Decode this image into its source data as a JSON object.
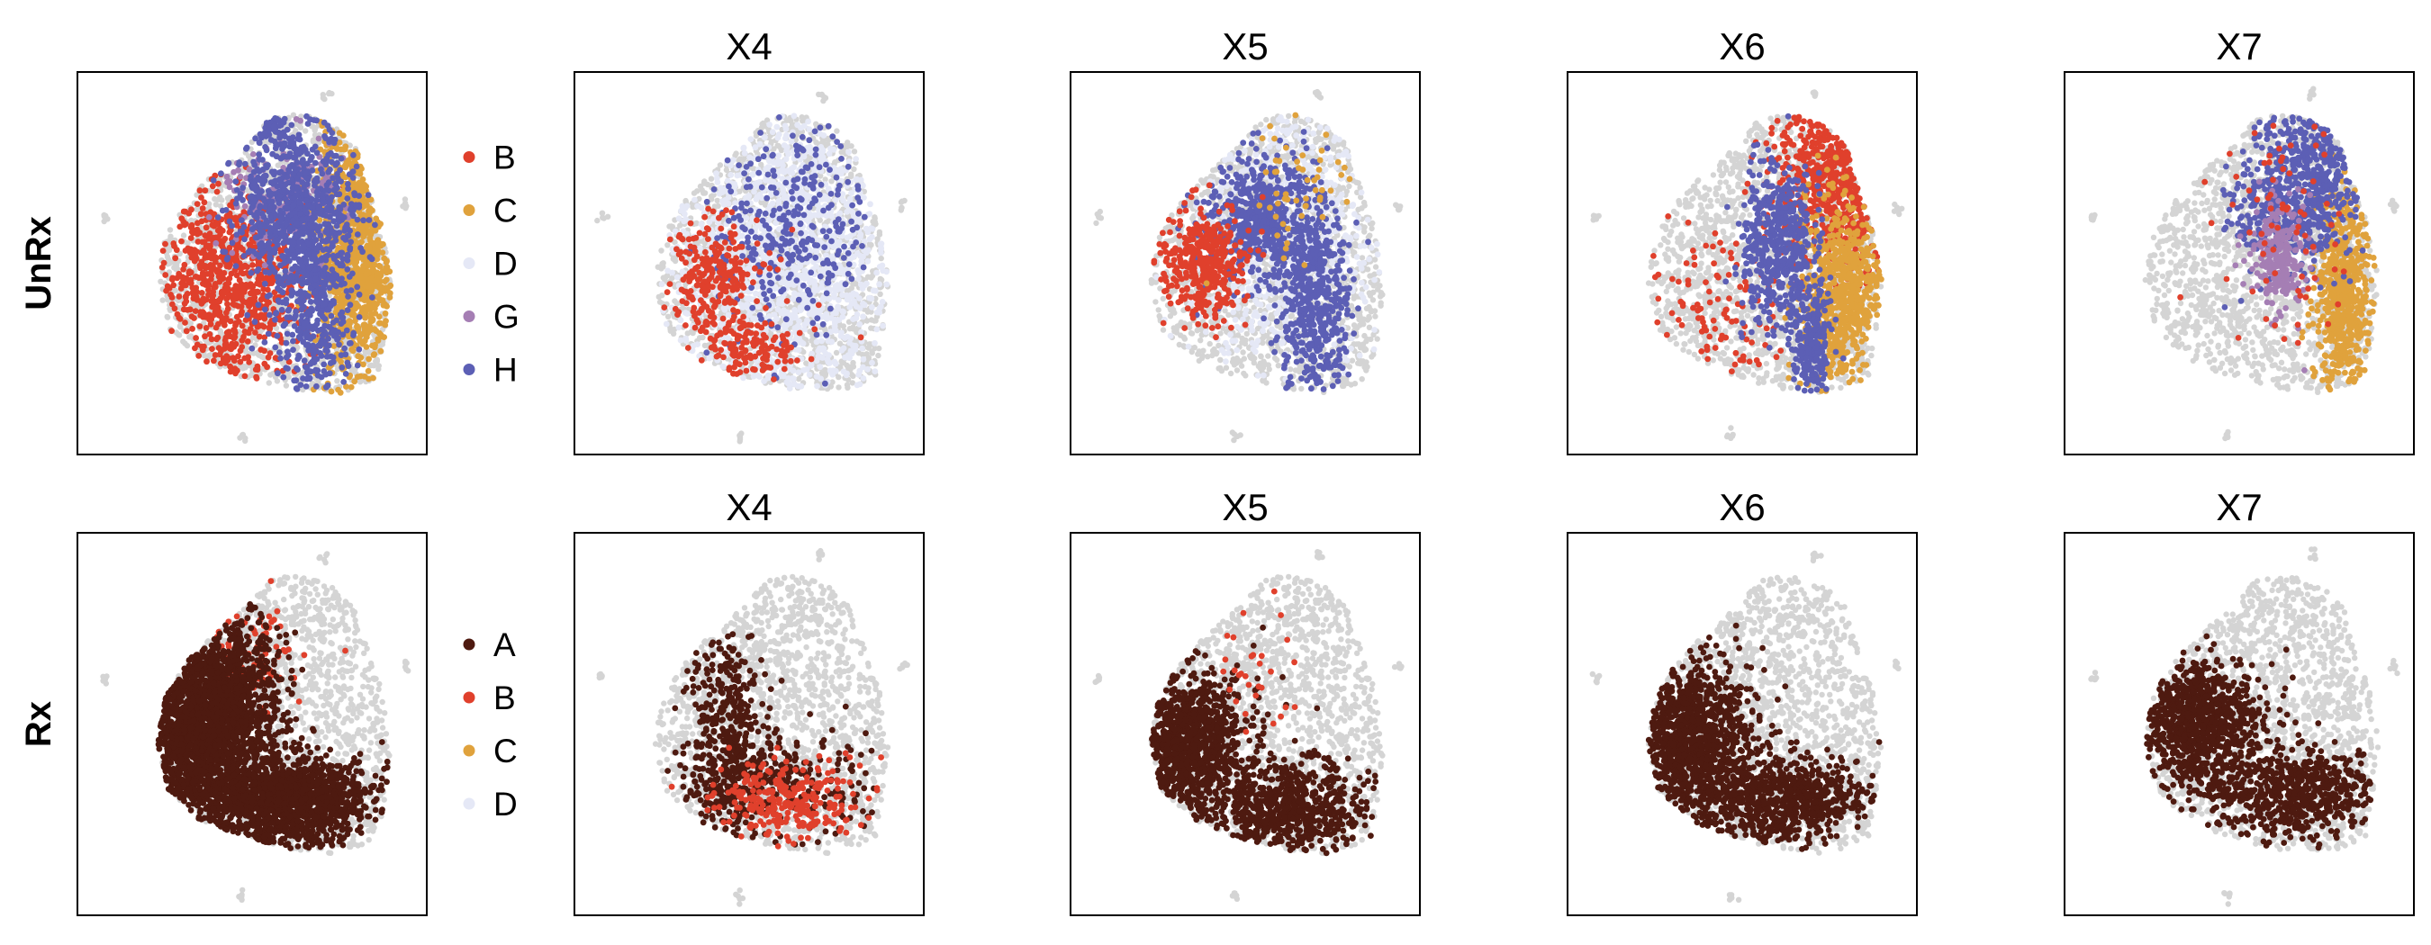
{
  "colors": {
    "background_cells": "#d4d4d4",
    "A": "#4e1a10",
    "B": "#e0402c",
    "C": "#e0a23c",
    "D": "#e5e8f6",
    "G": "#a57eb4",
    "H": "#5c5fb5",
    "frame": "#000000"
  },
  "chart_data": {
    "type": "scatter",
    "rows": [
      {
        "label": "UnRx",
        "legend": [
          {
            "name": "B",
            "color": "#e0402c"
          },
          {
            "name": "C",
            "color": "#e0a23c"
          },
          {
            "name": "D",
            "color": "#e5e8f6"
          },
          {
            "name": "G",
            "color": "#a57eb4"
          },
          {
            "name": "H",
            "color": "#5c5fb5"
          }
        ],
        "panels": [
          {
            "title": "",
            "series": [
              {
                "name": "B",
                "color": "#e0402c",
                "regions": [
                  {
                    "c": [
                      0.45,
                      0.58
                    ],
                    "s": [
                      0.11,
                      0.13
                    ],
                    "n": 700
                  },
                  {
                    "c": [
                      0.37,
                      0.46
                    ],
                    "s": [
                      0.06,
                      0.08
                    ],
                    "n": 120
                  }
                ]
              },
              {
                "name": "C",
                "color": "#e0a23c",
                "regions": [
                  {
                    "c": [
                      0.78,
                      0.45
                    ],
                    "s": [
                      0.05,
                      0.18
                    ],
                    "n": 900
                  },
                  {
                    "c": [
                      0.85,
                      0.55
                    ],
                    "s": [
                      0.04,
                      0.09
                    ],
                    "n": 200
                  }
                ]
              },
              {
                "name": "G",
                "color": "#a57eb4",
                "regions": [
                  {
                    "c": [
                      0.6,
                      0.32
                    ],
                    "s": [
                      0.09,
                      0.08
                    ],
                    "n": 200
                  }
                ]
              },
              {
                "name": "H",
                "color": "#5c5fb5",
                "regions": [
                  {
                    "c": [
                      0.62,
                      0.35
                    ],
                    "s": [
                      0.09,
                      0.1
                    ],
                    "n": 700
                  },
                  {
                    "c": [
                      0.68,
                      0.6
                    ],
                    "s": [
                      0.06,
                      0.14
                    ],
                    "n": 500
                  },
                  {
                    "c": [
                      0.56,
                      0.14
                    ],
                    "s": [
                      0.02,
                      0.03
                    ],
                    "n": 60
                  }
                ]
              }
            ]
          },
          {
            "title": "X4",
            "series": [
              {
                "name": "D",
                "color": "#e5e8f6",
                "regions": [
                  {
                    "c": [
                      0.6,
                      0.5
                    ],
                    "s": [
                      0.16,
                      0.22
                    ],
                    "n": 1800
                  }
                ]
              },
              {
                "name": "H",
                "color": "#5c5fb5",
                "regions": [
                  {
                    "c": [
                      0.62,
                      0.38
                    ],
                    "s": [
                      0.12,
                      0.16
                    ],
                    "n": 350
                  }
                ]
              },
              {
                "name": "B",
                "color": "#e0402c",
                "regions": [
                  {
                    "c": [
                      0.4,
                      0.55
                    ],
                    "s": [
                      0.07,
                      0.08
                    ],
                    "n": 280
                  },
                  {
                    "c": [
                      0.52,
                      0.73
                    ],
                    "s": [
                      0.07,
                      0.04
                    ],
                    "n": 120
                  }
                ]
              }
            ]
          },
          {
            "title": "X5",
            "series": [
              {
                "name": "D",
                "color": "#e5e8f6",
                "regions": [
                  {
                    "c": [
                      0.6,
                      0.42
                    ],
                    "s": [
                      0.14,
                      0.18
                    ],
                    "n": 900
                  }
                ]
              },
              {
                "name": "H",
                "color": "#5c5fb5",
                "regions": [
                  {
                    "c": [
                      0.55,
                      0.38
                    ],
                    "s": [
                      0.08,
                      0.08
                    ],
                    "n": 600
                  },
                  {
                    "c": [
                      0.7,
                      0.62
                    ],
                    "s": [
                      0.05,
                      0.13
                    ],
                    "n": 500
                  }
                ]
              },
              {
                "name": "B",
                "color": "#e0402c",
                "regions": [
                  {
                    "c": [
                      0.38,
                      0.5
                    ],
                    "s": [
                      0.06,
                      0.08
                    ],
                    "n": 380
                  }
                ]
              },
              {
                "name": "C",
                "color": "#e0a23c",
                "regions": [
                  {
                    "c": [
                      0.66,
                      0.3
                    ],
                    "s": [
                      0.08,
                      0.12
                    ],
                    "n": 60
                  }
                ]
              }
            ]
          },
          {
            "title": "X6",
            "series": [
              {
                "name": "B",
                "color": "#e0402c",
                "regions": [
                  {
                    "c": [
                      0.78,
                      0.27
                    ],
                    "s": [
                      0.09,
                      0.12
                    ],
                    "n": 900
                  },
                  {
                    "c": [
                      0.42,
                      0.6
                    ],
                    "s": [
                      0.09,
                      0.12
                    ],
                    "n": 120
                  }
                ]
              },
              {
                "name": "C",
                "color": "#e0a23c",
                "regions": [
                  {
                    "c": [
                      0.78,
                      0.58
                    ],
                    "s": [
                      0.06,
                      0.12
                    ],
                    "n": 700
                  }
                ]
              },
              {
                "name": "H",
                "color": "#5c5fb5",
                "regions": [
                  {
                    "c": [
                      0.6,
                      0.45
                    ],
                    "s": [
                      0.05,
                      0.11
                    ],
                    "n": 500
                  },
                  {
                    "c": [
                      0.7,
                      0.7
                    ],
                    "s": [
                      0.03,
                      0.08
                    ],
                    "n": 250
                  }
                ]
              }
            ]
          },
          {
            "title": "X7",
            "series": [
              {
                "name": "C",
                "color": "#e0a23c",
                "regions": [
                  {
                    "c": [
                      0.8,
                      0.58
                    ],
                    "s": [
                      0.04,
                      0.13
                    ],
                    "n": 650
                  }
                ]
              },
              {
                "name": "H",
                "color": "#5c5fb5",
                "regions": [
                  {
                    "c": [
                      0.7,
                      0.28
                    ],
                    "s": [
                      0.08,
                      0.11
                    ],
                    "n": 550
                  },
                  {
                    "c": [
                      0.6,
                      0.36
                    ],
                    "s": [
                      0.06,
                      0.08
                    ],
                    "n": 200
                  }
                ]
              },
              {
                "name": "G",
                "color": "#a57eb4",
                "regions": [
                  {
                    "c": [
                      0.61,
                      0.48
                    ],
                    "s": [
                      0.04,
                      0.07
                    ],
                    "n": 250
                  }
                ]
              },
              {
                "name": "B",
                "color": "#e0402c",
                "regions": [
                  {
                    "c": [
                      0.62,
                      0.32
                    ],
                    "s": [
                      0.12,
                      0.2
                    ],
                    "n": 90
                  }
                ]
              }
            ]
          }
        ]
      },
      {
        "label": "Rx",
        "legend": [
          {
            "name": "A",
            "color": "#4e1a10"
          },
          {
            "name": "B",
            "color": "#e0402c"
          },
          {
            "name": "C",
            "color": "#e0a23c"
          },
          {
            "name": "D",
            "color": "#e5e8f6"
          }
        ],
        "panels": [
          {
            "title": "",
            "series": [
              {
                "name": "B",
                "color": "#e0402c",
                "regions": [
                  {
                    "c": [
                      0.48,
                      0.3
                    ],
                    "s": [
                      0.08,
                      0.1
                    ],
                    "n": 120
                  }
                ]
              },
              {
                "name": "A",
                "color": "#4e1a10",
                "regions": [
                  {
                    "c": [
                      0.34,
                      0.52
                    ],
                    "s": [
                      0.1,
                      0.12
                    ],
                    "n": 2200
                  },
                  {
                    "c": [
                      0.6,
                      0.7
                    ],
                    "s": [
                      0.12,
                      0.06
                    ],
                    "n": 1500
                  },
                  {
                    "c": [
                      0.46,
                      0.38
                    ],
                    "s": [
                      0.06,
                      0.08
                    ],
                    "n": 400
                  }
                ]
              }
            ]
          },
          {
            "title": "X4",
            "series": [
              {
                "name": "A",
                "color": "#4e1a10",
                "regions": [
                  {
                    "c": [
                      0.43,
                      0.55
                    ],
                    "s": [
                      0.06,
                      0.14
                    ],
                    "n": 450
                  },
                  {
                    "c": [
                      0.6,
                      0.65
                    ],
                    "s": [
                      0.12,
                      0.07
                    ],
                    "n": 250
                  }
                ]
              },
              {
                "name": "B",
                "color": "#e0402c",
                "regions": [
                  {
                    "c": [
                      0.6,
                      0.7
                    ],
                    "s": [
                      0.12,
                      0.05
                    ],
                    "n": 280
                  }
                ]
              }
            ]
          },
          {
            "title": "X5",
            "series": [
              {
                "name": "A",
                "color": "#4e1a10",
                "regions": [
                  {
                    "c": [
                      0.32,
                      0.55
                    ],
                    "s": [
                      0.09,
                      0.1
                    ],
                    "n": 1300
                  },
                  {
                    "c": [
                      0.62,
                      0.72
                    ],
                    "s": [
                      0.11,
                      0.06
                    ],
                    "n": 700
                  }
                ]
              },
              {
                "name": "B",
                "color": "#e0402c",
                "regions": [
                  {
                    "c": [
                      0.52,
                      0.36
                    ],
                    "s": [
                      0.06,
                      0.08
                    ],
                    "n": 30
                  }
                ]
              }
            ]
          },
          {
            "title": "X6",
            "series": [
              {
                "name": "A",
                "color": "#4e1a10",
                "regions": [
                  {
                    "c": [
                      0.35,
                      0.55
                    ],
                    "s": [
                      0.09,
                      0.11
                    ],
                    "n": 1300
                  },
                  {
                    "c": [
                      0.62,
                      0.7
                    ],
                    "s": [
                      0.12,
                      0.06
                    ],
                    "n": 700
                  }
                ]
              }
            ]
          },
          {
            "title": "X7",
            "series": [
              {
                "name": "A",
                "color": "#4e1a10",
                "regions": [
                  {
                    "c": [
                      0.38,
                      0.5
                    ],
                    "s": [
                      0.09,
                      0.09
                    ],
                    "n": 1000
                  },
                  {
                    "c": [
                      0.65,
                      0.68
                    ],
                    "s": [
                      0.12,
                      0.06
                    ],
                    "n": 650
                  }
                ]
              }
            ]
          }
        ]
      }
    ]
  }
}
